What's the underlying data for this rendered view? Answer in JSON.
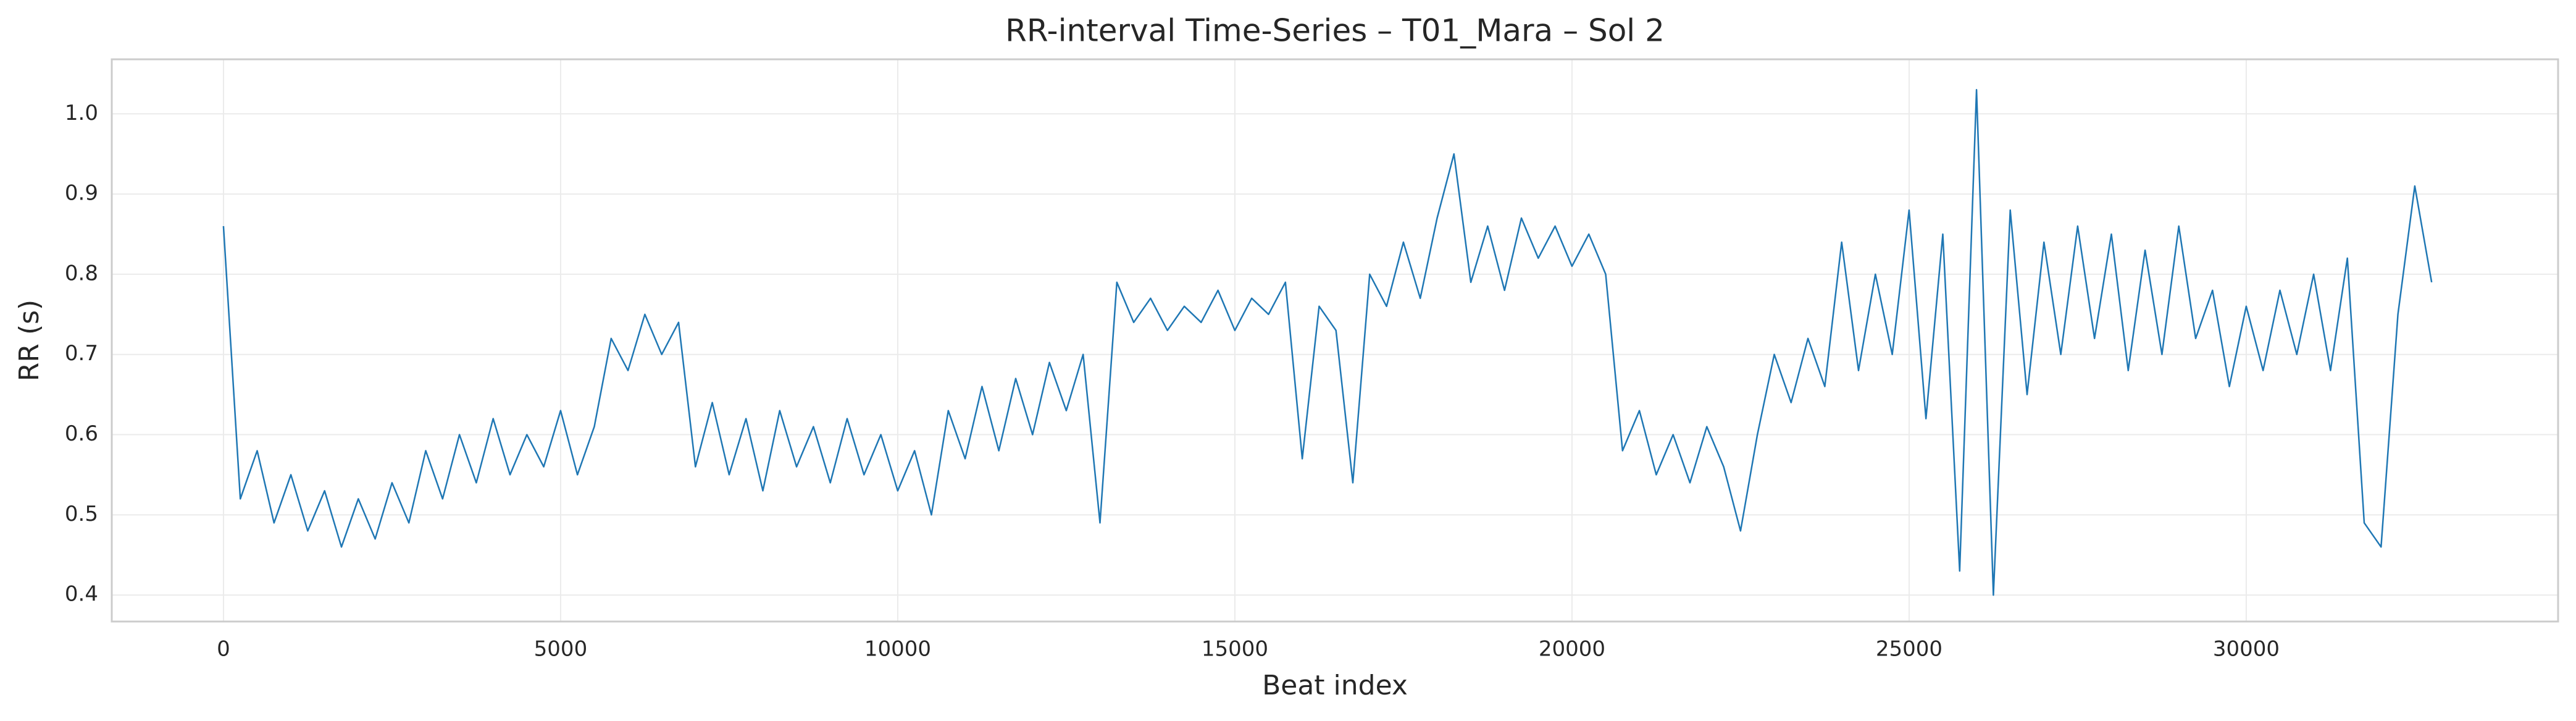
{
  "chart_data": {
    "type": "line",
    "title": "RR-interval Time-Series – T01_Mara – Sol 2",
    "x_label": "Beat index",
    "y_label": "RR (s)",
    "color": "#1f77b4",
    "grid": true,
    "xlim": [
      -1657,
      34625
    ],
    "ylim": [
      0.367,
      1.068
    ],
    "xticks": [
      0,
      5000,
      10000,
      15000,
      20000,
      25000,
      30000
    ],
    "yticks": [
      0.4,
      0.5,
      0.6,
      0.7,
      0.8,
      0.9,
      {
        "value": 1,
        "label": "1.0"
      }
    ],
    "x": [
      0,
      250,
      500,
      750,
      1000,
      1250,
      1500,
      1750,
      2000,
      2250,
      2500,
      2750,
      3000,
      3250,
      3500,
      3750,
      4000,
      4250,
      4500,
      4750,
      5000,
      5250,
      5500,
      5750,
      6000,
      6250,
      6500,
      6750,
      7000,
      7250,
      7500,
      7750,
      8000,
      8250,
      8500,
      8750,
      9000,
      9250,
      9500,
      9750,
      10000,
      10250,
      10500,
      10750,
      11000,
      11250,
      11500,
      11750,
      12000,
      12250,
      12500,
      12750,
      13000,
      13250,
      13500,
      13750,
      14000,
      14250,
      14500,
      14750,
      15000,
      15250,
      15500,
      15750,
      16000,
      16250,
      16500,
      16750,
      17000,
      17250,
      17500,
      17750,
      18000,
      18250,
      18500,
      18750,
      19000,
      19250,
      19500,
      19750,
      20000,
      20250,
      20500,
      20750,
      21000,
      21250,
      21500,
      21750,
      22000,
      22250,
      22500,
      22750,
      23000,
      23250,
      23500,
      23750,
      24000,
      24250,
      24500,
      24750,
      25000,
      25250,
      25500,
      25750,
      26000,
      26250,
      26500,
      26750,
      27000,
      27250,
      27500,
      27750,
      28000,
      28250,
      28500,
      28750,
      29000,
      29250,
      29500,
      29750,
      30000,
      30250,
      30500,
      30750,
      31000,
      31250,
      31500,
      31750,
      32000,
      32250,
      32500,
      32750
    ],
    "values": [
      0.86,
      0.52,
      0.58,
      0.49,
      0.55,
      0.48,
      0.53,
      0.46,
      0.52,
      0.47,
      0.54,
      0.49,
      0.58,
      0.52,
      0.6,
      0.54,
      0.62,
      0.55,
      0.6,
      0.56,
      0.63,
      0.55,
      0.61,
      0.72,
      0.68,
      0.75,
      0.7,
      0.74,
      0.56,
      0.64,
      0.55,
      0.62,
      0.53,
      0.63,
      0.56,
      0.61,
      0.54,
      0.62,
      0.55,
      0.6,
      0.53,
      0.58,
      0.5,
      0.63,
      0.57,
      0.66,
      0.58,
      0.67,
      0.6,
      0.69,
      0.63,
      0.7,
      0.49,
      0.79,
      0.74,
      0.77,
      0.73,
      0.76,
      0.74,
      0.78,
      0.73,
      0.77,
      0.75,
      0.79,
      0.57,
      0.76,
      0.73,
      0.54,
      0.8,
      0.76,
      0.84,
      0.77,
      0.87,
      0.95,
      0.79,
      0.86,
      0.78,
      0.87,
      0.82,
      0.86,
      0.81,
      0.85,
      0.8,
      0.58,
      0.63,
      0.55,
      0.6,
      0.54,
      0.61,
      0.56,
      0.48,
      0.6,
      0.7,
      0.64,
      0.72,
      0.66,
      0.84,
      0.68,
      0.8,
      0.7,
      0.88,
      0.62,
      0.85,
      0.43,
      1.03,
      0.4,
      0.88,
      0.65,
      0.84,
      0.7,
      0.86,
      0.72,
      0.85,
      0.68,
      0.83,
      0.7,
      0.86,
      0.72,
      0.78,
      0.66,
      0.76,
      0.68,
      0.78,
      0.7,
      0.8,
      0.68,
      0.82,
      0.49,
      0.46,
      0.75,
      0.91,
      0.79
    ]
  }
}
